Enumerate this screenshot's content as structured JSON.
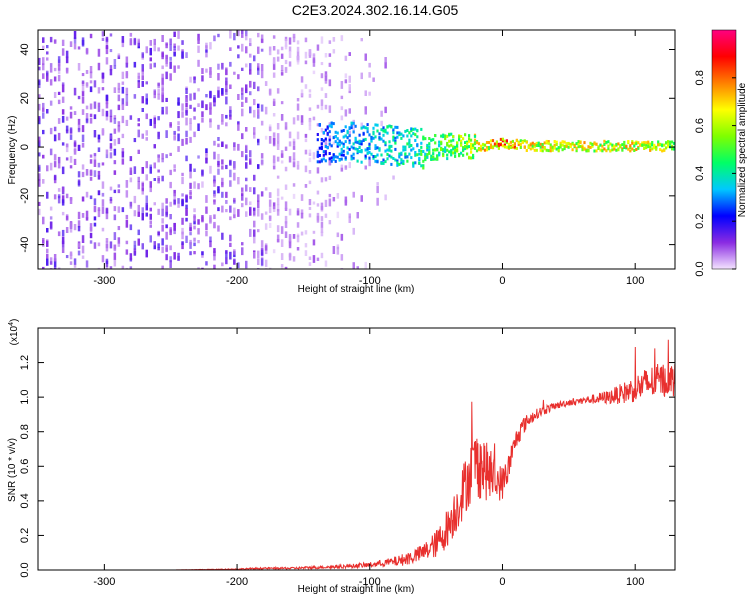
{
  "title": "C2E3.2024.302.16.14.G05",
  "chart_data": [
    {
      "type": "heatmap",
      "title": "C2E3.2024.302.16.14.G05",
      "xlabel": "Height of straight line (km)",
      "ylabel": "Frequency (Hz)",
      "xlim": [
        -350,
        130
      ],
      "ylim": [
        -50,
        48
      ],
      "x_ticks": [
        "-300",
        "-200",
        "-100",
        "0",
        "100"
      ],
      "y_ticks": [
        "-40",
        "-20",
        "0",
        "20",
        "40"
      ],
      "x_tick_values": [
        -300,
        -200,
        -100,
        0,
        100
      ],
      "y_tick_values": [
        -40,
        -20,
        0,
        20,
        40
      ],
      "colorbar": {
        "label": "Normalized spectral amplitude",
        "range": [
          0.0,
          1.0
        ],
        "ticks": [
          "0.0",
          "0.2",
          "0.4",
          "0.6",
          "0.8"
        ],
        "tick_values": [
          0.0,
          0.2,
          0.4,
          0.6,
          0.8
        ],
        "colors": [
          "#f4e4ff",
          "#8a2be2",
          "#0000ff",
          "#00c8ff",
          "#00ff66",
          "#7fff00",
          "#ffff00",
          "#ff8000",
          "#ff0000",
          "#ff0080"
        ]
      },
      "signal_track": {
        "description": "bright ridge near 0 Hz from about -140 km upward",
        "x": [
          -140,
          -120,
          -100,
          -80,
          -60,
          -40,
          -20,
          0,
          20,
          40,
          60,
          80,
          100,
          120,
          130
        ],
        "frequency_hz": [
          2,
          3,
          2,
          1,
          0,
          1,
          1,
          2,
          1,
          1,
          1,
          1,
          1,
          1,
          1
        ],
        "amplitude": [
          0.3,
          0.35,
          0.4,
          0.45,
          0.5,
          0.6,
          0.7,
          0.9,
          0.75,
          0.75,
          0.75,
          0.75,
          0.75,
          0.7,
          0.6
        ]
      }
    },
    {
      "type": "line",
      "title": "",
      "xlabel": "Height of straight line (km)",
      "ylabel": "SNR (10 * v/v)",
      "yscale_label": "(x10^4)",
      "yscale_base": "(x10",
      "yscale_exp": "4",
      "yscale_close": ")",
      "xlim": [
        -350,
        130
      ],
      "ylim": [
        0.0,
        1.4
      ],
      "x_ticks": [
        "-300",
        "-200",
        "-100",
        "0",
        "100"
      ],
      "y_ticks": [
        "0.0",
        "0.2",
        "0.4",
        "0.6",
        "0.8",
        "1.0",
        "1.2"
      ],
      "x_tick_values": [
        -300,
        -200,
        -100,
        0,
        100
      ],
      "y_tick_values": [
        0.0,
        0.2,
        0.4,
        0.6,
        0.8,
        1.0,
        1.2
      ],
      "series": [
        {
          "name": "SNR",
          "color": "#e8302e",
          "x": [
            -350,
            -300,
            -250,
            -200,
            -180,
            -160,
            -140,
            -120,
            -100,
            -90,
            -80,
            -70,
            -60,
            -50,
            -45,
            -40,
            -35,
            -30,
            -25,
            -20,
            -15,
            -10,
            -5,
            0,
            5,
            10,
            15,
            20,
            25,
            30,
            40,
            50,
            60,
            70,
            80,
            90,
            100,
            110,
            120,
            130
          ],
          "y": [
            0.0,
            0.0,
            0.0,
            0.005,
            0.01,
            0.01,
            0.015,
            0.02,
            0.03,
            0.04,
            0.05,
            0.07,
            0.1,
            0.15,
            0.2,
            0.27,
            0.35,
            0.45,
            0.55,
            0.62,
            0.6,
            0.55,
            0.52,
            0.5,
            0.6,
            0.75,
            0.83,
            0.87,
            0.9,
            0.92,
            0.95,
            0.97,
            0.98,
            0.99,
            1.0,
            1.02,
            1.05,
            1.08,
            1.1,
            1.1
          ],
          "noise": [
            0,
            0,
            0,
            0.003,
            0.005,
            0.006,
            0.008,
            0.01,
            0.015,
            0.02,
            0.03,
            0.04,
            0.05,
            0.08,
            0.1,
            0.12,
            0.14,
            0.16,
            0.18,
            0.2,
            0.2,
            0.15,
            0.12,
            0.1,
            0.08,
            0.06,
            0.05,
            0.04,
            0.03,
            0.03,
            0.02,
            0.02,
            0.02,
            0.03,
            0.04,
            0.06,
            0.08,
            0.1,
            0.1,
            0.1
          ]
        }
      ]
    }
  ]
}
